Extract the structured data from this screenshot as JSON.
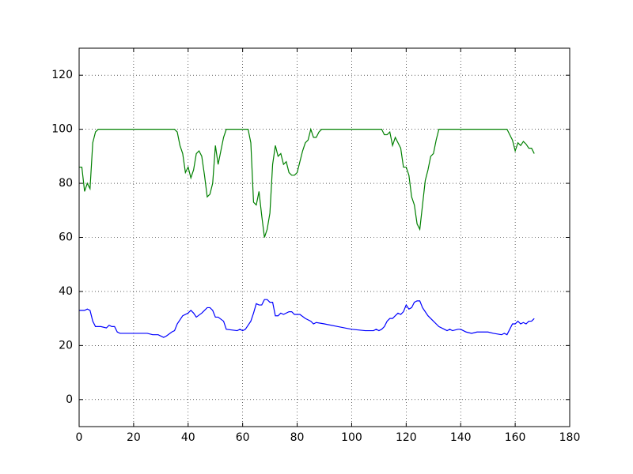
{
  "chart_data": {
    "type": "line",
    "series": [
      {
        "name": "blue",
        "color": "#0000ff",
        "x": [
          0,
          2,
          3,
          4,
          5,
          6,
          8,
          10,
          11,
          12,
          13,
          14,
          15,
          17,
          20,
          25,
          27,
          29,
          31,
          32,
          34,
          35,
          36,
          38,
          40,
          41,
          42,
          43,
          45,
          47,
          48,
          49,
          50,
          51,
          53,
          54,
          58,
          59,
          60,
          61,
          63,
          64,
          65,
          66,
          67,
          68,
          69,
          70,
          71,
          72,
          73,
          74,
          75,
          77,
          78,
          79,
          81,
          83,
          85,
          86,
          87,
          90,
          95,
          100,
          105,
          108,
          109,
          110,
          111,
          112,
          113,
          114,
          115,
          116,
          117,
          118,
          119,
          120,
          121,
          122,
          123,
          124,
          125,
          126,
          128,
          130,
          131,
          132,
          134,
          135,
          136,
          137,
          139,
          140,
          141,
          142,
          144,
          146,
          150,
          152,
          155,
          156,
          157,
          158,
          159,
          160,
          161,
          162,
          163,
          164,
          165,
          166,
          167
        ],
        "values": [
          33,
          33,
          33.5,
          33,
          29,
          27,
          27,
          26.5,
          27.5,
          27,
          27,
          25,
          24.5,
          24.5,
          24.5,
          24.5,
          24,
          24,
          23,
          23.5,
          25,
          25.5,
          28,
          31,
          32,
          33,
          32,
          30.5,
          32,
          34,
          34,
          33,
          30.5,
          30.5,
          29,
          26,
          25.5,
          26,
          25.5,
          26,
          29,
          32,
          35.5,
          35,
          35,
          37,
          37,
          36,
          36,
          31,
          31,
          32,
          31.5,
          32.5,
          32.5,
          31.5,
          31.5,
          30,
          29,
          28,
          28.5,
          28,
          27,
          26,
          25.5,
          25.5,
          26,
          25.5,
          26,
          27,
          29,
          30,
          30,
          31,
          32,
          31.5,
          32.5,
          35,
          33.5,
          34,
          36,
          36.5,
          36.5,
          34,
          31,
          29,
          28,
          27,
          26,
          25.5,
          26,
          25.5,
          26,
          26,
          25.5,
          25,
          24.5,
          25,
          25,
          24.5,
          24,
          24.5,
          24,
          26,
          28,
          28,
          29,
          28,
          28.5,
          28,
          29,
          29,
          30
        ]
      },
      {
        "name": "green",
        "color": "#008000",
        "x": [
          0,
          1,
          2,
          3,
          4,
          5,
          6,
          7,
          35,
          36,
          37,
          38,
          39,
          40,
          41,
          42,
          43,
          44,
          45,
          46,
          47,
          48,
          49,
          50,
          51,
          52,
          53,
          54,
          62,
          63,
          64,
          65,
          66,
          67,
          68,
          69,
          70,
          71,
          72,
          73,
          74,
          75,
          76,
          77,
          78,
          79,
          80,
          81,
          82,
          83,
          84,
          85,
          86,
          87,
          88,
          89,
          111,
          112,
          113,
          114,
          115,
          116,
          117,
          118,
          119,
          120,
          121,
          122,
          123,
          124,
          125,
          126,
          127,
          128,
          129,
          130,
          131,
          132,
          157,
          158,
          159,
          160,
          161,
          162,
          163,
          164,
          165,
          166,
          167
        ],
        "values": [
          86,
          86,
          77,
          80,
          78,
          95,
          99,
          100,
          100,
          99,
          94,
          91,
          84,
          86,
          82,
          85,
          91,
          92,
          90,
          83,
          75,
          76,
          80,
          94,
          87,
          92,
          97,
          100,
          100,
          95,
          73,
          72,
          77,
          68,
          60,
          63,
          69,
          87,
          94,
          90,
          91,
          87,
          88,
          84,
          83,
          83,
          84,
          88,
          92,
          95,
          96,
          100,
          97,
          97,
          99,
          100,
          100,
          98,
          98,
          99,
          94,
          97,
          95,
          93,
          86,
          86,
          83,
          75,
          72,
          65,
          63,
          72,
          81,
          85,
          90,
          91,
          96,
          100,
          100,
          98,
          96,
          92,
          95,
          94,
          95.5,
          94.5,
          93,
          93,
          91
        ]
      }
    ],
    "xlim": [
      0,
      180
    ],
    "xticks": [
      0,
      20,
      40,
      60,
      80,
      100,
      120,
      140,
      160,
      180
    ],
    "ylim": [
      -10,
      130
    ],
    "yticks": [
      0,
      20,
      40,
      60,
      80,
      100,
      120
    ],
    "grid": true
  }
}
